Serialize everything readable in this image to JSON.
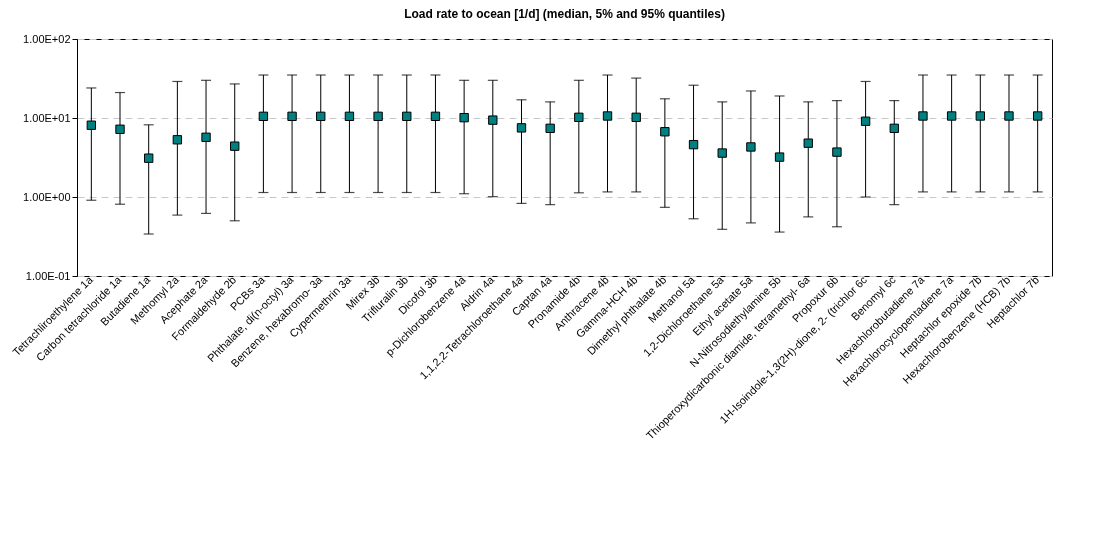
{
  "chart_data": {
    "type": "scatter",
    "title": "Load rate to ocean [1/d] (median, 5% and 95% quantiles)",
    "categories": [
      "Tetrachliroethylene 1a",
      "Carbon tetrachloride 1a",
      "Butadiene 1a",
      "Methomyl 2a",
      "Acephate 2a",
      "Formaldehyde 2b",
      "PCBs 3a",
      "Phthalate, di(n-octyl) 3a",
      "Benzene, hexabromo- 3a",
      "Cypermethrin 3a",
      "Mirex 3b",
      "Trifluralin 3b",
      "Dicofol 3b",
      "p-Dichlorobenzene 4a",
      "Aldrin 4a",
      "1,1,2,2-Tetrachloroethane 4a",
      "Captan 4a",
      "Pronamide 4b",
      "Anthracene 4b",
      "Gamma-HCH 4b",
      "Dimethyl phthalate 4b",
      "Methanol 5a",
      "1,2-Dichloroethane 5a",
      "Ethyl acetate 5a",
      "N-Nitrosodiethylamine 5b",
      "Thioperoxydicarbonic diamide, tetramethyl- 6a",
      "Propoxur 6b",
      "1H-Isoindole-1,3(2H)-dione, 2- (trichlor 6c",
      "Benomyl 6c",
      "Hexachlorobutadiene 7a",
      "Hexachlorocyclopentadiene 7a",
      "Heptachlor epoxide 7b",
      "Hexachlorobenzene (HCB) 7b",
      "Heptachlor 7b"
    ],
    "values": [
      8.1,
      7.2,
      3.1,
      5.3,
      5.7,
      4.4,
      10.5,
      10.5,
      10.5,
      10.5,
      10.5,
      10.5,
      10.5,
      10.1,
      9.4,
      7.5,
      7.4,
      10.2,
      10.6,
      10.2,
      6.7,
      4.6,
      3.6,
      4.3,
      3.2,
      4.8,
      3.7,
      9.1,
      7.4,
      10.6,
      10.6,
      10.6,
      10.6,
      10.6
    ],
    "errors": [
      [
        0.91,
        24
      ],
      [
        0.81,
        21
      ],
      [
        0.34,
        8.2
      ],
      [
        0.59,
        29
      ],
      [
        0.62,
        30
      ],
      [
        0.5,
        27
      ],
      [
        1.14,
        35
      ],
      [
        1.14,
        35
      ],
      [
        1.14,
        35
      ],
      [
        1.14,
        35
      ],
      [
        1.14,
        35
      ],
      [
        1.14,
        35
      ],
      [
        1.14,
        35
      ],
      [
        1.1,
        30
      ],
      [
        1.01,
        30
      ],
      [
        0.83,
        17
      ],
      [
        0.8,
        16
      ],
      [
        1.13,
        30
      ],
      [
        1.16,
        35
      ],
      [
        1.16,
        32
      ],
      [
        0.74,
        17.5
      ],
      [
        0.53,
        26
      ],
      [
        0.39,
        16
      ],
      [
        0.47,
        22
      ],
      [
        0.36,
        19
      ],
      [
        0.56,
        16
      ],
      [
        0.42,
        16.6
      ],
      [
        1.0,
        29
      ],
      [
        0.8,
        16.6
      ],
      [
        1.16,
        35
      ],
      [
        1.16,
        35
      ],
      [
        1.16,
        35
      ],
      [
        1.16,
        35
      ],
      [
        1.16,
        35
      ]
    ],
    "color": "#008080",
    "marker": "square",
    "log": "y",
    "grid": "y",
    "ylim": [
      0.1,
      100
    ],
    "yticks": [
      {
        "value": 0.1,
        "label": "1.00E-01"
      },
      {
        "value": 1,
        "label": "1.00E+00"
      },
      {
        "value": 10,
        "label": "1.00E+01"
      },
      {
        "value": 100,
        "label": "1.00E+02"
      }
    ]
  }
}
